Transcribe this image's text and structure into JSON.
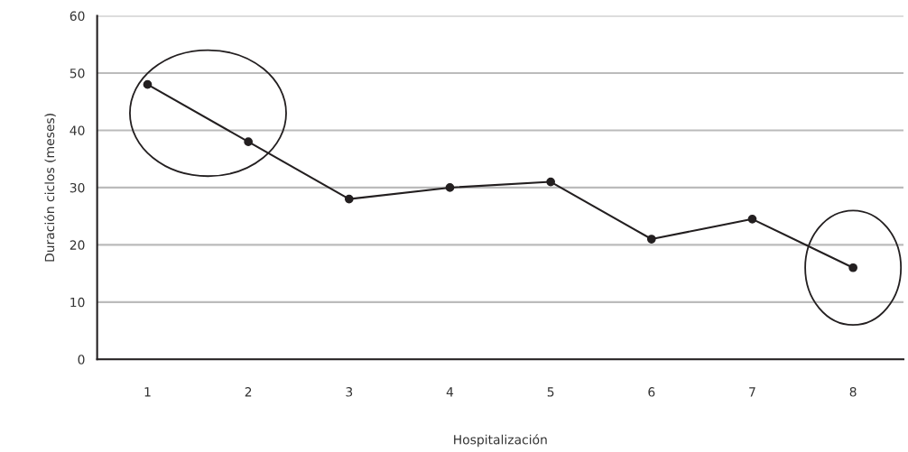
{
  "chart_data": {
    "type": "line",
    "xlabel": "Hospitalización",
    "ylabel": "Duración ciclos (meses)",
    "categories": [
      "1",
      "2",
      "3",
      "4",
      "5",
      "6",
      "7",
      "8"
    ],
    "series": [
      {
        "color": "#231f20",
        "values": [
          48,
          38,
          28,
          30,
          31,
          21,
          24.5,
          16
        ]
      }
    ],
    "ylim": [
      0,
      60
    ],
    "yticks": [
      0,
      10,
      20,
      30,
      40,
      50,
      60
    ],
    "grid": "y",
    "marker": "circle",
    "line_style": "solid",
    "legend": false
  }
}
